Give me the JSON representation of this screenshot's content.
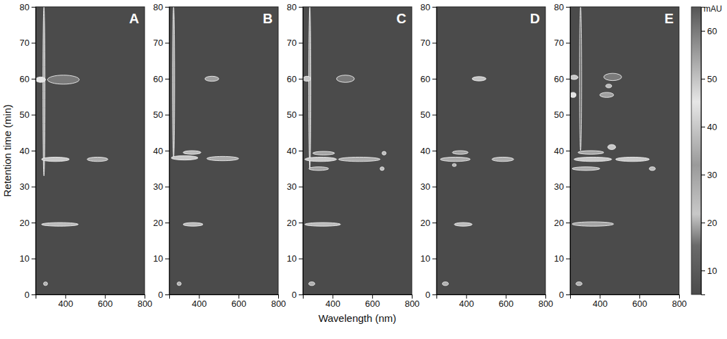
{
  "chart_data": {
    "type": "heatmap",
    "xlabel": "Wavelength (nm)",
    "ylabel": "Retention time (min)",
    "xlim": [
      250,
      800
    ],
    "xticks": [
      400,
      600,
      800
    ],
    "ylim": [
      0,
      80
    ],
    "yticks": [
      0,
      10,
      20,
      30,
      40,
      50,
      60,
      70,
      80
    ],
    "colorbar": {
      "label": "mAU",
      "range": [
        5,
        65
      ],
      "ticks": [
        10,
        20,
        30,
        40,
        50,
        60
      ]
    },
    "panels": [
      {
        "title": "A",
        "cells": [
          {
            "x": [
              288,
              296
            ],
            "y": [
              33,
              80
            ],
            "value": 30
          },
          {
            "x": [
              250,
              300
            ],
            "y": [
              59,
              60.5
            ],
            "value": 45
          },
          {
            "x": [
              310,
              470
            ],
            "y": [
              58.5,
              61
            ],
            "value": 60
          },
          {
            "x": [
              280,
              420
            ],
            "y": [
              37,
              38.2
            ],
            "value": 40
          },
          {
            "x": [
              510,
              615
            ],
            "y": [
              37,
              38.2
            ],
            "value": 35
          },
          {
            "x": [
              280,
              465
            ],
            "y": [
              19,
              20
            ],
            "value": 25
          },
          {
            "x": [
              290,
              310
            ],
            "y": [
              2.5,
              3.5
            ],
            "value": 20
          }
        ]
      },
      {
        "title": "B",
        "cells": [
          {
            "x": [
              268,
              276
            ],
            "y": [
              38,
              80
            ],
            "value": 30
          },
          {
            "x": [
              430,
              500
            ],
            "y": [
              59.3,
              60.7
            ],
            "value": 55
          },
          {
            "x": [
              320,
              410
            ],
            "y": [
              39,
              40
            ],
            "value": 25
          },
          {
            "x": [
              260,
              395
            ],
            "y": [
              37.4,
              38.6
            ],
            "value": 40
          },
          {
            "x": [
              440,
              600
            ],
            "y": [
              37.2,
              38.4
            ],
            "value": 35
          },
          {
            "x": [
              320,
              420
            ],
            "y": [
              19,
              20
            ],
            "value": 25
          },
          {
            "x": [
              290,
              310
            ],
            "y": [
              2.5,
              3.5
            ],
            "value": 20
          }
        ]
      },
      {
        "title": "C",
        "cells": [
          {
            "x": [
              281,
              289
            ],
            "y": [
              35,
              80
            ],
            "value": 30
          },
          {
            "x": [
              250,
              290
            ],
            "y": [
              59.3,
              60.7
            ],
            "value": 40
          },
          {
            "x": [
              420,
              510
            ],
            "y": [
              59,
              61
            ],
            "value": 60
          },
          {
            "x": [
              300,
              410
            ],
            "y": [
              38.8,
              39.8
            ],
            "value": 30
          },
          {
            "x": [
              260,
              420
            ],
            "y": [
              37,
              38.2
            ],
            "value": 40
          },
          {
            "x": [
              430,
              640
            ],
            "y": [
              37,
              38.2
            ],
            "value": 35
          },
          {
            "x": [
              650,
              670
            ],
            "y": [
              38.8,
              39.8
            ],
            "value": 25
          },
          {
            "x": [
              280,
              380
            ],
            "y": [
              34.5,
              35.5
            ],
            "value": 30
          },
          {
            "x": [
              640,
              660
            ],
            "y": [
              34.5,
              35.5
            ],
            "value": 25
          },
          {
            "x": [
              260,
              440
            ],
            "y": [
              19,
              20
            ],
            "value": 25
          },
          {
            "x": [
              280,
              310
            ],
            "y": [
              2.5,
              3.5
            ],
            "value": 20
          }
        ]
      },
      {
        "title": "D",
        "cells": [
          {
            "x": [
              430,
              500
            ],
            "y": [
              59.4,
              60.6
            ],
            "value": 50
          },
          {
            "x": [
              330,
              410
            ],
            "y": [
              39,
              40
            ],
            "value": 30
          },
          {
            "x": [
              270,
              420
            ],
            "y": [
              37,
              38.2
            ],
            "value": 35
          },
          {
            "x": [
              530,
              640
            ],
            "y": [
              37,
              38.2
            ],
            "value": 35
          },
          {
            "x": [
              330,
              350
            ],
            "y": [
              35.6,
              36.4
            ],
            "value": 20
          },
          {
            "x": [
              340,
              430
            ],
            "y": [
              19,
              20
            ],
            "value": 25
          },
          {
            "x": [
              280,
              310
            ],
            "y": [
              2.5,
              3.5
            ],
            "value": 20
          }
        ]
      },
      {
        "title": "E",
        "cells": [
          {
            "x": [
              300,
              306
            ],
            "y": [
              40,
              80
            ],
            "value": 15
          },
          {
            "x": [
              250,
              290
            ],
            "y": [
              59.8,
              61
            ],
            "value": 40
          },
          {
            "x": [
              420,
              510
            ],
            "y": [
              59.5,
              61.5
            ],
            "value": 60
          },
          {
            "x": [
              430,
              460
            ],
            "y": [
              57.5,
              58.5
            ],
            "value": 25
          },
          {
            "x": [
              250,
              280
            ],
            "y": [
              54.8,
              56.2
            ],
            "value": 45
          },
          {
            "x": [
              400,
              470
            ],
            "y": [
              54.8,
              56.2
            ],
            "value": 55
          },
          {
            "x": [
              440,
              480
            ],
            "y": [
              40.3,
              41.7
            ],
            "value": 40
          },
          {
            "x": [
              290,
              420
            ],
            "y": [
              39,
              40
            ],
            "value": 30
          },
          {
            "x": [
              270,
              460
            ],
            "y": [
              37,
              38.2
            ],
            "value": 40
          },
          {
            "x": [
              480,
              650
            ],
            "y": [
              37,
              38.2
            ],
            "value": 40
          },
          {
            "x": [
              260,
              400
            ],
            "y": [
              34.5,
              35.5
            ],
            "value": 35
          },
          {
            "x": [
              650,
              680
            ],
            "y": [
              34.5,
              35.5
            ],
            "value": 25
          },
          {
            "x": [
              260,
              470
            ],
            "y": [
              19,
              20.2
            ],
            "value": 30
          },
          {
            "x": [
              280,
              310
            ],
            "y": [
              2.5,
              3.5
            ],
            "value": 20
          }
        ]
      }
    ]
  }
}
